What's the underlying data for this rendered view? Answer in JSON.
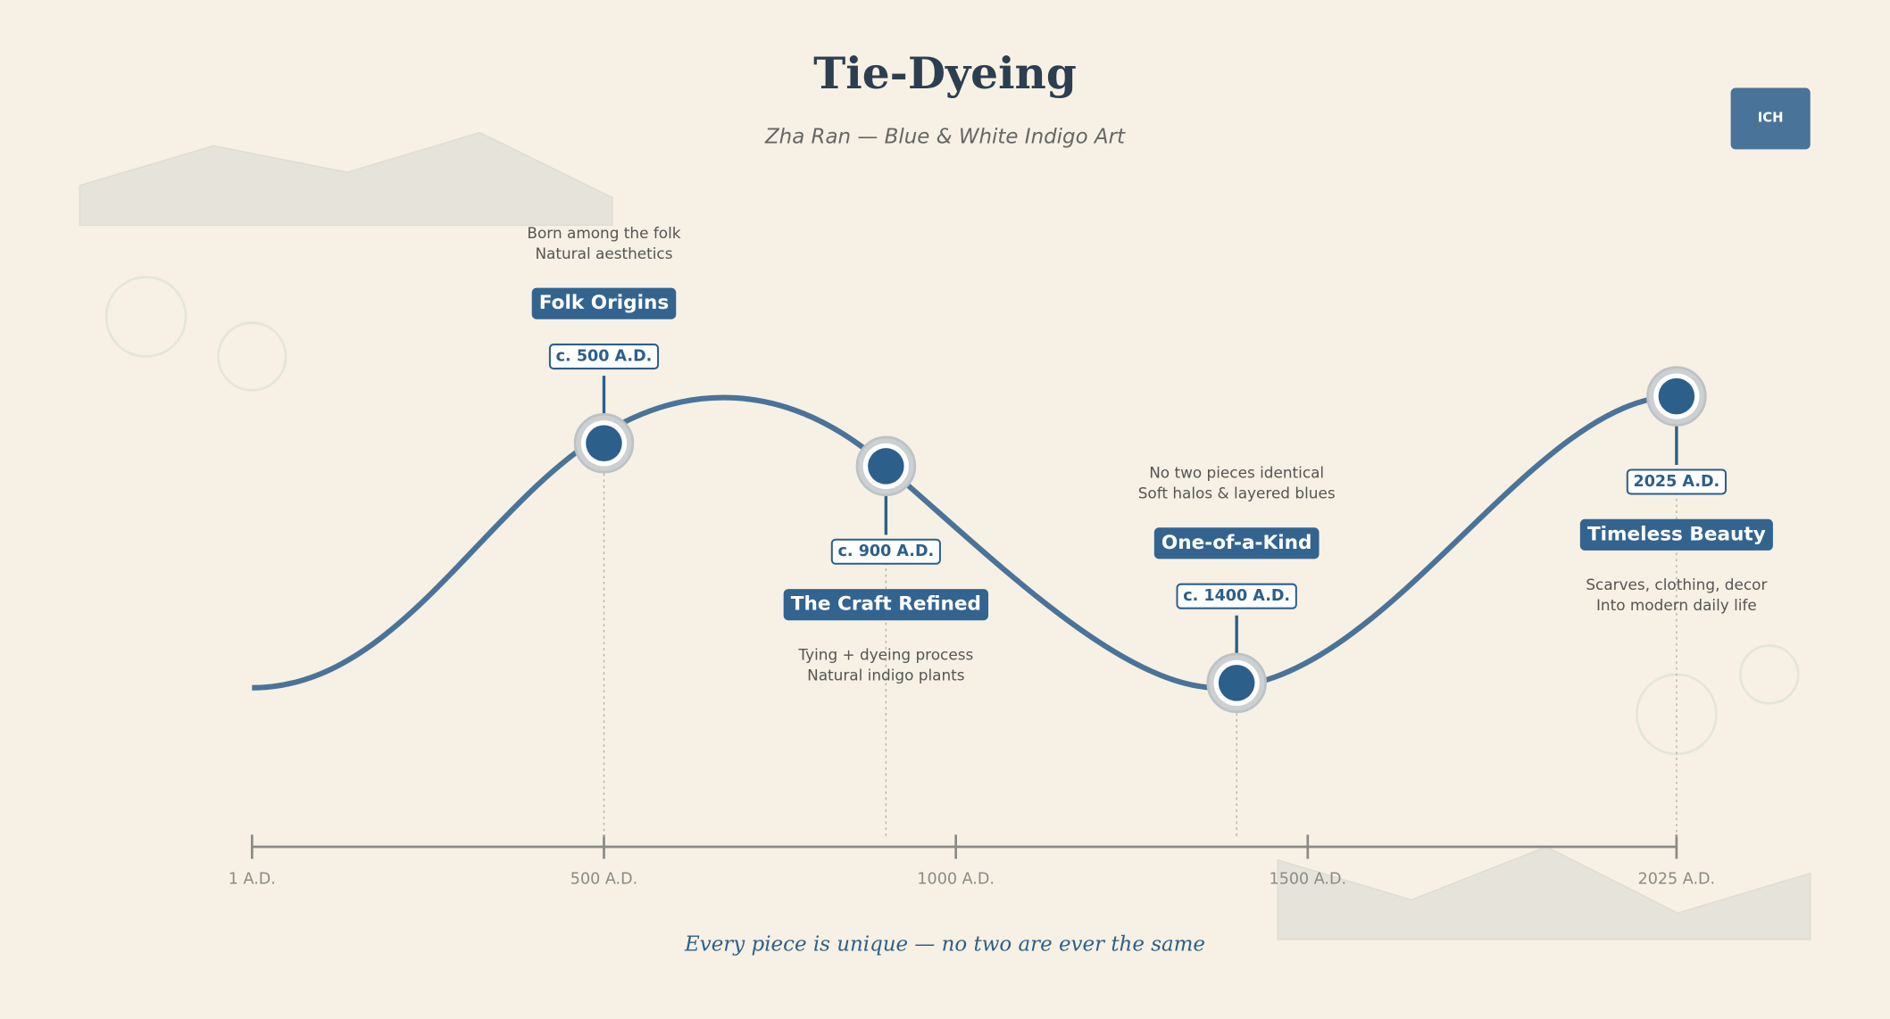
{
  "header": {
    "title": "Tie-Dyeing",
    "subtitle": "Zha Ran — Blue & White Indigo Art",
    "badge": "ICH"
  },
  "events": [
    {
      "date": "c. 500 A.D.",
      "title": "Folk Origins",
      "notes": [
        "Born among the folk",
        "Natural aesthetics"
      ]
    },
    {
      "date": "c. 900 A.D.",
      "title": "The Craft Refined",
      "notes": [
        "Tying + dyeing process",
        "Natural indigo plants"
      ]
    },
    {
      "date": "c. 1400 A.D.",
      "title": "One-of-a-Kind",
      "notes": [
        "No two pieces identical",
        "Soft halos & layered blues"
      ]
    },
    {
      "date": "2025 A.D.",
      "title": "Timeless Beauty",
      "notes": [
        "Scarves, clothing, decor",
        "Into modern daily life"
      ]
    }
  ],
  "axis": {
    "labels": [
      "1 A.D.",
      "500 A.D.",
      "1000 A.D.",
      "1500 A.D.",
      "2025 A.D."
    ]
  },
  "footer": "Every piece is unique — no two are ever the same"
}
